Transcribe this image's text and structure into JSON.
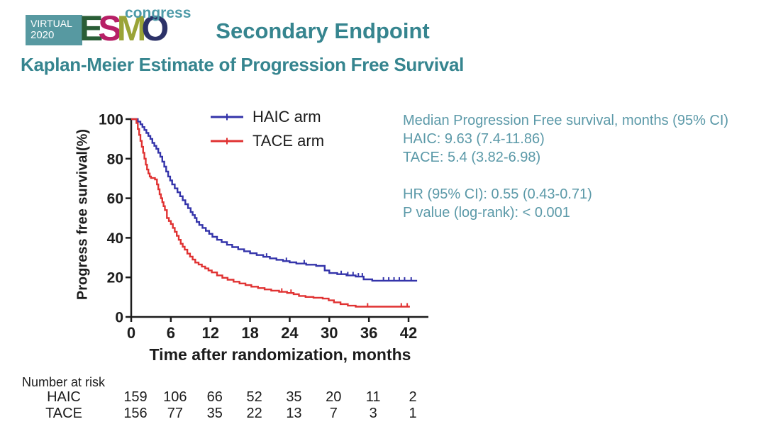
{
  "header": {
    "logo": {
      "virtual": "VIRTUAL",
      "year": "2020",
      "box_color": "#5799a1",
      "esmo_letters": [
        {
          "char": "E",
          "color": "#2a5d36"
        },
        {
          "char": "S",
          "color": "#b72066"
        },
        {
          "char": "M",
          "color": "#9aa437"
        },
        {
          "char": "O",
          "color": "#2c3268"
        }
      ],
      "congress": "congress",
      "congress_color": "#4d9aa8"
    },
    "title": "Secondary Endpoint",
    "subtitle": "Kaplan-Meier Estimate of Progression Free Survival",
    "title_color": "#36858f"
  },
  "stats": {
    "color": "#5b99a8",
    "lines": [
      "Median Progression Free survival, months (95% CI)",
      "HAIC: 9.63 (7.4-11.86)",
      "TACE: 5.4 (3.82-6.98)",
      "",
      "HR (95% CI): 0.55 (0.43-0.71)",
      "P value (log-rank): < 0.001"
    ]
  },
  "chart_data": {
    "type": "line",
    "subtype": "kaplan-meier-step",
    "title": "",
    "xlabel": "Time after randomization, months",
    "ylabel": "Progress free survival(%)",
    "xlim": [
      0,
      45
    ],
    "ylim": [
      0,
      100
    ],
    "xticks": [
      0,
      6,
      12,
      18,
      24,
      30,
      36,
      42
    ],
    "yticks": [
      0,
      20,
      40,
      60,
      80,
      100
    ],
    "grid": false,
    "legend_position": "top-inside",
    "axis_color": "#1c1c1c",
    "series": [
      {
        "name": "HAIC arm",
        "color": "#3434aa",
        "points": [
          [
            0,
            100
          ],
          [
            1.0,
            98.7
          ],
          [
            1.4,
            97.4
          ],
          [
            1.7,
            96
          ],
          [
            2.0,
            94.5
          ],
          [
            2.3,
            93
          ],
          [
            2.6,
            91.5
          ],
          [
            2.9,
            90
          ],
          [
            3.2,
            88
          ],
          [
            3.5,
            86.5
          ],
          [
            3.8,
            85
          ],
          [
            4.1,
            83
          ],
          [
            4.4,
            81
          ],
          [
            4.7,
            78.5
          ],
          [
            5.0,
            76
          ],
          [
            5.3,
            73.5
          ],
          [
            5.6,
            71
          ],
          [
            5.9,
            69
          ],
          [
            6.2,
            67
          ],
          [
            6.6,
            65
          ],
          [
            7.0,
            63
          ],
          [
            7.4,
            61
          ],
          [
            7.8,
            59
          ],
          [
            8.2,
            57
          ],
          [
            8.6,
            55
          ],
          [
            9.0,
            53
          ],
          [
            9.3,
            51.5
          ],
          [
            9.63,
            50
          ],
          [
            9.9,
            48
          ],
          [
            10.3,
            46.5
          ],
          [
            10.8,
            45
          ],
          [
            11.3,
            43.5
          ],
          [
            11.8,
            42
          ],
          [
            12.3,
            40.5
          ],
          [
            13.0,
            39
          ],
          [
            13.7,
            37.8
          ],
          [
            14.5,
            36.5
          ],
          [
            15.3,
            35.3
          ],
          [
            16.2,
            34.2
          ],
          [
            17.1,
            33.2
          ],
          [
            18.0,
            32.2
          ],
          [
            19.0,
            31.3
          ],
          [
            20.0,
            30.4
          ],
          [
            21.0,
            29.6
          ],
          [
            22.0,
            28.9
          ],
          [
            23.0,
            28.2
          ],
          [
            24.0,
            27.6
          ],
          [
            25.0,
            27
          ],
          [
            26.5,
            26.4
          ],
          [
            28.0,
            25.8
          ],
          [
            29.3,
            23.5
          ],
          [
            30.0,
            22.2
          ],
          [
            31.2,
            21.6
          ],
          [
            32.6,
            21
          ],
          [
            34.0,
            20.4
          ],
          [
            35.2,
            19
          ],
          [
            36.5,
            18.3
          ],
          [
            43.3,
            18.3
          ]
        ],
        "censor_times": [
          20.5,
          23.5,
          26.2,
          31.8,
          32.8,
          33.6,
          34.4,
          35.0,
          38.2,
          39.0,
          39.8,
          40.6,
          41.4,
          42.4
        ]
      },
      {
        "name": "TACE arm",
        "color": "#e03232",
        "points": [
          [
            0,
            100
          ],
          [
            0.8,
            98
          ],
          [
            1.0,
            95
          ],
          [
            1.2,
            92
          ],
          [
            1.4,
            89
          ],
          [
            1.6,
            86
          ],
          [
            1.8,
            83
          ],
          [
            2.0,
            80
          ],
          [
            2.2,
            77
          ],
          [
            2.4,
            74.5
          ],
          [
            2.6,
            72.5
          ],
          [
            2.8,
            71
          ],
          [
            3.0,
            70.2
          ],
          [
            3.6,
            69.5
          ],
          [
            3.9,
            67
          ],
          [
            4.1,
            64.5
          ],
          [
            4.3,
            62
          ],
          [
            4.5,
            60
          ],
          [
            4.7,
            58
          ],
          [
            4.9,
            56
          ],
          [
            5.1,
            54
          ],
          [
            5.4,
            50
          ],
          [
            5.7,
            48.5
          ],
          [
            6.0,
            47
          ],
          [
            6.3,
            45
          ],
          [
            6.6,
            43
          ],
          [
            6.9,
            41
          ],
          [
            7.2,
            39
          ],
          [
            7.5,
            37
          ],
          [
            7.8,
            35.5
          ],
          [
            8.1,
            34
          ],
          [
            8.5,
            32
          ],
          [
            8.9,
            30.5
          ],
          [
            9.3,
            29
          ],
          [
            9.7,
            27.5
          ],
          [
            10.2,
            26.5
          ],
          [
            10.7,
            25.5
          ],
          [
            11.2,
            24.5
          ],
          [
            11.7,
            23.5
          ],
          [
            12.2,
            22.5
          ],
          [
            13.0,
            21
          ],
          [
            13.8,
            19.8
          ],
          [
            14.6,
            18.8
          ],
          [
            15.5,
            17.8
          ],
          [
            16.4,
            16.9
          ],
          [
            17.3,
            16.1
          ],
          [
            18.2,
            15.3
          ],
          [
            19.2,
            14.6
          ],
          [
            20.2,
            13.9
          ],
          [
            21.2,
            13.3
          ],
          [
            22.4,
            12.7
          ],
          [
            23.6,
            12.1
          ],
          [
            24.6,
            11.5
          ],
          [
            25.4,
            10.6
          ],
          [
            26.4,
            10.1
          ],
          [
            27.6,
            9.7
          ],
          [
            29.0,
            9.3
          ],
          [
            29.9,
            8.4
          ],
          [
            30.7,
            7.4
          ],
          [
            31.7,
            6.5
          ],
          [
            32.8,
            5.7
          ],
          [
            34.0,
            5.2
          ],
          [
            42.2,
            5.2
          ]
        ],
        "censor_times": [
          22.8,
          24.2,
          35.8,
          40.9,
          41.8
        ]
      }
    ]
  },
  "risk_table": {
    "label": "Number at risk",
    "times": [
      0,
      6,
      12,
      18,
      24,
      30,
      36,
      42
    ],
    "rows": [
      {
        "name": "HAIC",
        "values": [
          159,
          106,
          66,
          52,
          35,
          20,
          11,
          2
        ]
      },
      {
        "name": "TACE",
        "values": [
          156,
          77,
          35,
          22,
          13,
          7,
          3,
          1
        ]
      }
    ]
  }
}
